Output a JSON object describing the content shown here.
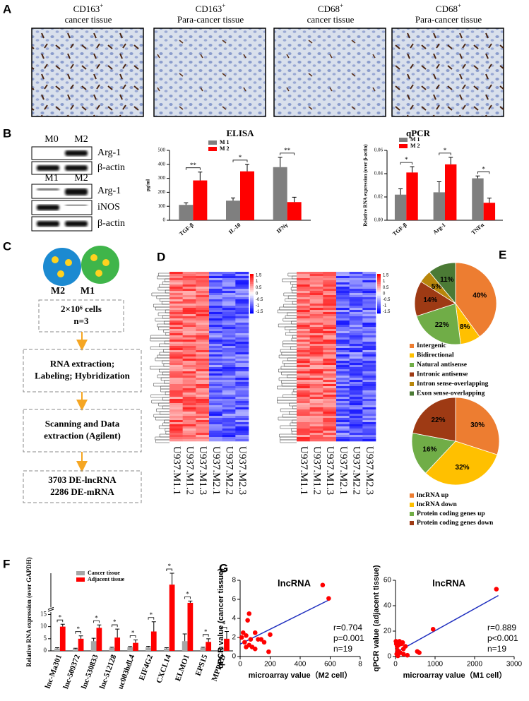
{
  "panels": [
    "A",
    "B",
    "C",
    "D",
    "E",
    "F",
    "G"
  ],
  "ihc": [
    {
      "marker": "CD163",
      "sup": "+",
      "tissue": "cancer tissue"
    },
    {
      "marker": "CD163",
      "sup": "+",
      "tissue": "Para-cancer tissue"
    },
    {
      "marker": "CD68",
      "sup": "+",
      "tissue": "cancer tissue"
    },
    {
      "marker": "CD68",
      "sup": "+",
      "tissue": "Para-cancer tissue"
    }
  ],
  "blot": {
    "top_lanes": [
      "M0",
      "M2"
    ],
    "top_rows": [
      "Arg-1",
      "β-actin"
    ],
    "bottom_lanes": [
      "M1",
      "M2"
    ],
    "bottom_rows": [
      "Arg-1",
      "iNOS",
      "β-actin"
    ]
  },
  "flow": {
    "cells": [
      "M2",
      "M1"
    ],
    "steps": [
      [
        "2×10⁶ cells",
        "n=3"
      ],
      [
        "RNA extraction;",
        "Labeling; Hybridization"
      ],
      [
        "Scanning and Data",
        "extraction (Agilent)"
      ],
      [
        "3703 DE-lncRNA",
        "2286 DE-mRNA"
      ]
    ]
  },
  "heatmaps": [
    {
      "columns": [
        "U937.M1.1",
        "U937.M1.2",
        "U937.M1.3",
        "U937.M2.1",
        "U937.M2.2",
        "U937.M2.3"
      ],
      "scale_ticks": [
        1.5,
        1,
        0.5,
        0,
        -0.5,
        -1,
        -1.5
      ]
    },
    {
      "columns": [
        "U937.M1.1",
        "U937.M1.2",
        "U937.M1.3",
        "U937.M2.1",
        "U937.M2.2",
        "U937.M2.3"
      ],
      "scale_ticks": [
        1.5,
        1,
        0.5,
        0,
        -0.5,
        -1,
        -1.5
      ]
    }
  ],
  "chart_data": [
    {
      "type": "bar",
      "title": "ELISA",
      "ylabel": "pg/ml",
      "categories": [
        "TGF-β",
        "IL-10",
        "IFNγ"
      ],
      "series": [
        {
          "name": "M 1",
          "color": "#7f7f7f",
          "values": [
            110,
            140,
            380
          ],
          "errors": [
            15,
            20,
            70
          ]
        },
        {
          "name": "M 2",
          "color": "#ff0000",
          "values": [
            285,
            350,
            130
          ],
          "errors": [
            60,
            50,
            35
          ]
        }
      ],
      "ylim": [
        0,
        500
      ],
      "yticks": [
        0,
        100,
        200,
        300,
        400,
        500
      ],
      "annotations": [
        "**",
        "*",
        "**"
      ]
    },
    {
      "type": "bar",
      "title": "qPCR",
      "ylabel": "Relative RNA expression (over β-actin)",
      "categories": [
        "TGF-β",
        "Arg-1",
        "TNFα"
      ],
      "series": [
        {
          "name": "M 1",
          "color": "#7f7f7f",
          "values": [
            0.022,
            0.024,
            0.036
          ],
          "errors": [
            0.005,
            0.009,
            0.002
          ]
        },
        {
          "name": "M 2",
          "color": "#ff0000",
          "values": [
            0.041,
            0.048,
            0.015
          ],
          "errors": [
            0.005,
            0.006,
            0.004
          ]
        }
      ],
      "ylim": [
        0,
        0.06
      ],
      "yticks": [
        {
          "value": 0,
          "label": "0.00"
        },
        0.02,
        0.04,
        0.06
      ],
      "annotations": [
        "*",
        "*",
        "*"
      ]
    },
    {
      "type": "pie",
      "categories": [
        "Intergenic",
        "Bidirectional",
        "Natural antisense",
        "Intronic antisense",
        "Intron sense-overlapping",
        "Exon sense-overlapping"
      ],
      "values": [
        40,
        8,
        22,
        14,
        5,
        11
      ],
      "value_labels": [
        "40%",
        "8%",
        "22%",
        "14%",
        "5%",
        "11%"
      ],
      "colors": [
        "#ed7d31",
        "#ffc000",
        "#70ad47",
        "#9e3a14",
        "#b8860b",
        "#4b7a35"
      ]
    },
    {
      "type": "pie",
      "categories": [
        "lncRNA up",
        "lncRNA down",
        "Protein coding genes up",
        "Protein coding genes down"
      ],
      "values": [
        30,
        32,
        16,
        22
      ],
      "value_labels": [
        "30%",
        "32%",
        "16%",
        "22%"
      ],
      "colors": [
        "#ed7d31",
        "#ffc000",
        "#70ad47",
        "#9e3a14"
      ]
    },
    {
      "type": "bar",
      "ylabel": "Relative RNA expression (over GAPDH)",
      "categories": [
        "lnc-Ma301",
        "lnc-509372",
        "lnc-530833",
        "lnc-512128",
        "uc003hdl.4",
        "EIF4G2",
        "CXCL14",
        "ELMO1",
        "EPS15",
        "MPPED"
      ],
      "series": [
        {
          "name": "Cancer tissue",
          "color": "#a6a6a6",
          "values": [
            1,
            0.8,
            4,
            1.2,
            1.5,
            1.5,
            1,
            4,
            1.2,
            1.2
          ],
          "errors": [
            0.3,
            0.3,
            1.2,
            0.3,
            0.3,
            0.4,
            0.3,
            3,
            0.3,
            0.3
          ]
        },
        {
          "name": "Adjacent tissue",
          "color": "#ff0000",
          "values": [
            10,
            5,
            9.5,
            5.5,
            3.3,
            8,
            120,
            40,
            3.7,
            5
          ],
          "errors": [
            1,
            1.2,
            1.2,
            3.5,
            1.2,
            4,
            50,
            8,
            1.3,
            3
          ]
        }
      ],
      "ylim": [
        0,
        170
      ],
      "ybreak": [
        16,
        20
      ],
      "yticks": [
        0,
        5,
        10,
        15
      ],
      "annotations": [
        "*",
        "*",
        "*",
        "*",
        "*",
        "*",
        "*",
        "*",
        "*",
        "*"
      ]
    },
    {
      "type": "scatter",
      "title": "lncRNA",
      "xlabel": "microarray value（M2 cell）",
      "ylabel": "qPCR value (cancer tissue)",
      "x": [
        550,
        590,
        60,
        50,
        20,
        10,
        40,
        70,
        100,
        120,
        140,
        160,
        200,
        190,
        40,
        80,
        30,
        60,
        100
      ],
      "y": [
        7.5,
        6.1,
        4.5,
        3.8,
        2.5,
        2.0,
        2.2,
        1.8,
        2.5,
        1.8,
        1.8,
        1.5,
        2.3,
        0.5,
        1.0,
        1.0,
        1.5,
        1.2,
        0.8
      ],
      "fit": {
        "x": [
          0,
          600
        ],
        "y": [
          1.3,
          6.0
        ]
      },
      "color": "#ff0000",
      "xlim": [
        0,
        800
      ],
      "xticks": [
        0,
        200,
        400,
        600,
        {
          "value": 800,
          "label": "8"
        }
      ],
      "ylim": [
        0,
        8
      ],
      "yticks": [
        0,
        2,
        4,
        6,
        8
      ],
      "stats": [
        "r=0.704",
        "p=0.001",
        "n=19"
      ]
    },
    {
      "type": "scatter",
      "title": "lncRNA",
      "xlabel": "microarray value（M1 cell）",
      "ylabel": "qPCR value (adjacent tissue)",
      "x": [
        2550,
        950,
        10,
        20,
        40,
        50,
        30,
        60,
        100,
        150,
        200,
        250,
        300,
        120,
        80,
        200,
        550,
        600,
        180
      ],
      "y": [
        53,
        21.5,
        12,
        10,
        8,
        5,
        2,
        0.5,
        12,
        10,
        6,
        8,
        1,
        3,
        9,
        2,
        4,
        3,
        11
      ],
      "fit": {
        "x": [
          0,
          2600
        ],
        "y": [
          3,
          48
        ]
      },
      "color": "#ff0000",
      "xlim": [
        0,
        3000
      ],
      "xticks": [
        0,
        1000,
        2000,
        3000
      ],
      "ylim": [
        0,
        60
      ],
      "yticks": [
        0,
        20,
        40,
        60
      ],
      "stats": [
        "r=0.889",
        "p<0.001",
        "n=19"
      ]
    }
  ]
}
